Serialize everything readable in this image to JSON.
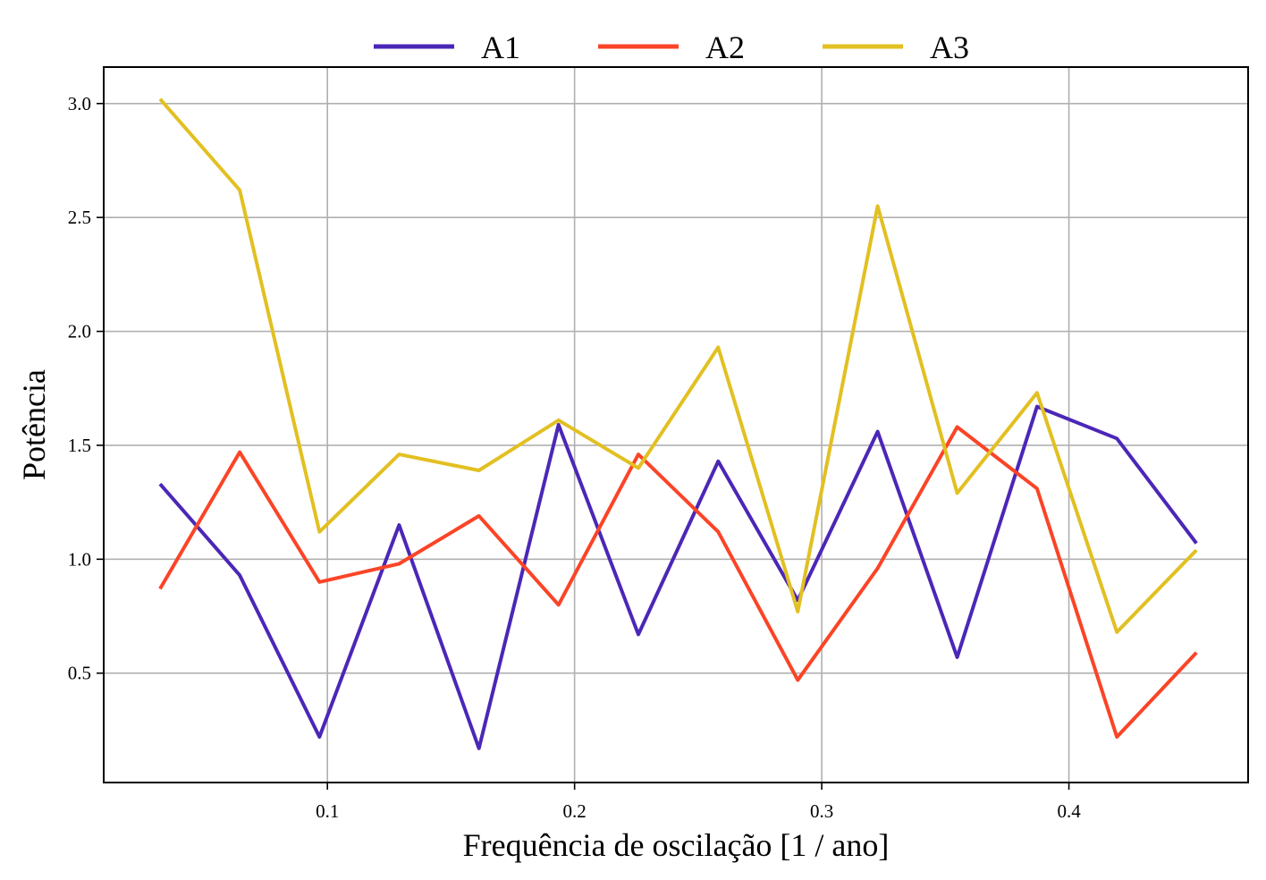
{
  "chart_data": {
    "type": "line",
    "xlabel": "Frequência de oscilação [1 / ano]",
    "ylabel": "Potência",
    "xlim": [
      0.0095,
      0.4725
    ],
    "ylim": [
      0.02,
      3.16
    ],
    "xticks": [
      0.1,
      0.2,
      0.3,
      0.4
    ],
    "xtick_labels": [
      "0.1",
      "0.2",
      "0.3",
      "0.4"
    ],
    "yticks": [
      0.5,
      1.0,
      1.5,
      2.0,
      2.5,
      3.0
    ],
    "ytick_labels": [
      "0.5",
      "1.0",
      "1.5",
      "2.0",
      "2.5",
      "3.0"
    ],
    "grid": true,
    "legend_position": "top-center",
    "x": [
      0.0323,
      0.0645,
      0.0968,
      0.129,
      0.1613,
      0.1935,
      0.2258,
      0.2581,
      0.2903,
      0.3226,
      0.3548,
      0.3871,
      0.4194,
      0.4516
    ],
    "series": [
      {
        "name": "A1",
        "color": "#4b27b7",
        "values": [
          1.33,
          0.93,
          0.22,
          1.15,
          0.17,
          1.59,
          0.67,
          1.43,
          0.82,
          1.56,
          0.57,
          1.67,
          1.53,
          1.07
        ]
      },
      {
        "name": "A2",
        "color": "#fb4427",
        "values": [
          0.87,
          1.47,
          0.9,
          0.98,
          1.19,
          0.8,
          1.46,
          1.12,
          0.47,
          0.96,
          1.58,
          1.31,
          0.22,
          0.59
        ]
      },
      {
        "name": "A3",
        "color": "#e2c022",
        "values": [
          3.02,
          2.62,
          1.12,
          1.46,
          1.39,
          1.61,
          1.4,
          1.93,
          0.77,
          2.55,
          1.29,
          1.73,
          0.68,
          1.04
        ]
      }
    ]
  }
}
